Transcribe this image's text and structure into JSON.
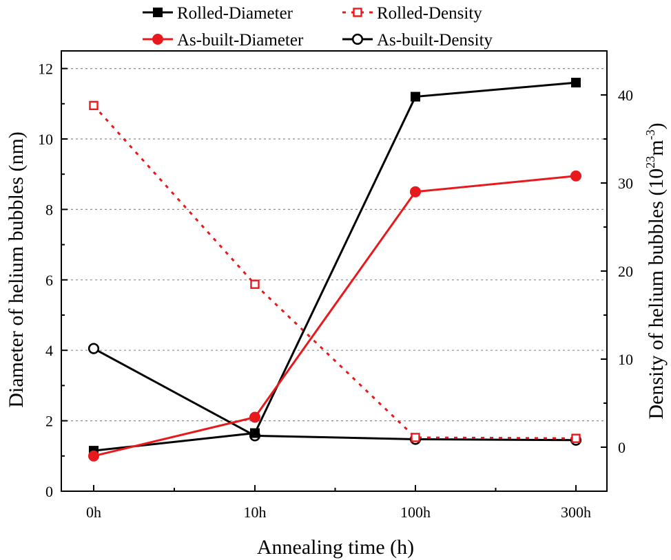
{
  "chart_data": {
    "type": "line",
    "categories": [
      "0h",
      "10h",
      "100h",
      "300h"
    ],
    "xlabel": "Annealing time (h)",
    "ylabel_left": "Diameter of helium bubbles (nm)",
    "ylabel_right": {
      "prefix": "Density of helium bubbles (10",
      "exp1": "23",
      "mid": "m",
      "exp2": "-3",
      "suffix": ")"
    },
    "y_left": {
      "min": 0,
      "max": 12.5,
      "ticks": [
        "0",
        "2",
        "4",
        "6",
        "8",
        "10",
        "12"
      ]
    },
    "y_right": {
      "min": -5,
      "max": 45,
      "ticks": [
        "0",
        "10",
        "20",
        "30",
        "40"
      ]
    },
    "grid": "horizontal dotted",
    "legend_position": "top",
    "series": [
      {
        "name": "Rolled-Diameter",
        "axis": "left",
        "color": "#000000",
        "marker": "square-filled",
        "dash": "solid",
        "values": [
          1.15,
          1.65,
          11.2,
          11.6
        ]
      },
      {
        "name": "Rolled-Density",
        "axis": "right",
        "color": "#e8191c",
        "marker": "square-open",
        "dash": "dotted",
        "values": [
          38.8,
          18.5,
          1.1,
          1.0
        ]
      },
      {
        "name": "As-built-Diameter",
        "axis": "left",
        "color": "#e8191c",
        "marker": "circle-filled",
        "dash": "solid",
        "values": [
          1.0,
          2.1,
          8.5,
          8.95
        ]
      },
      {
        "name": "As-built-Density",
        "axis": "right",
        "color": "#000000",
        "marker": "circle-open",
        "dash": "solid",
        "values": [
          11.2,
          1.3,
          0.9,
          0.8
        ]
      }
    ]
  }
}
